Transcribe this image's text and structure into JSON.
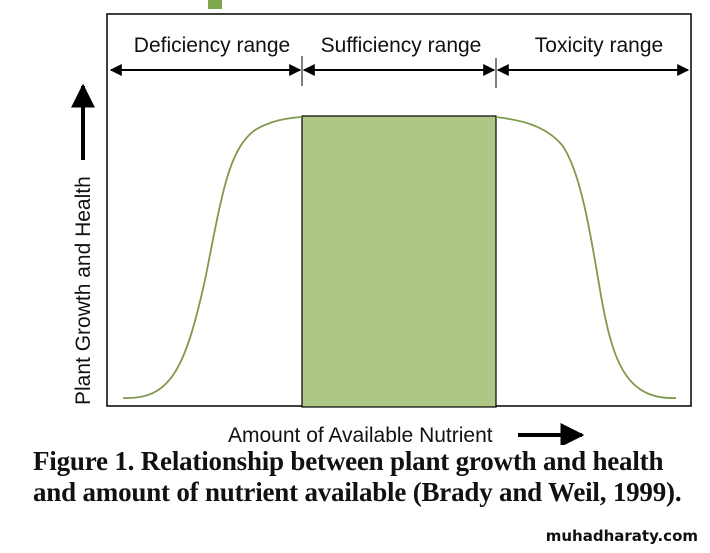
{
  "diagram": {
    "ranges": [
      {
        "label": "Deficiency range"
      },
      {
        "label": "Sufficiency range"
      },
      {
        "label": "Toxicity range"
      }
    ],
    "y_axis_label": "Plant Growth and Health",
    "x_axis_label": "Amount of Available Nutrient",
    "colors": {
      "sufficiency_fill": "#afc785",
      "curve": "#7f9a4c",
      "accent_square": "#7fa64a",
      "frame": "#000000"
    }
  },
  "caption": "Figure 1. Relationship between plant growth and health and amount of nutrient available (Brady and Weil, 1999).",
  "watermark": "muhadharaty.com"
}
